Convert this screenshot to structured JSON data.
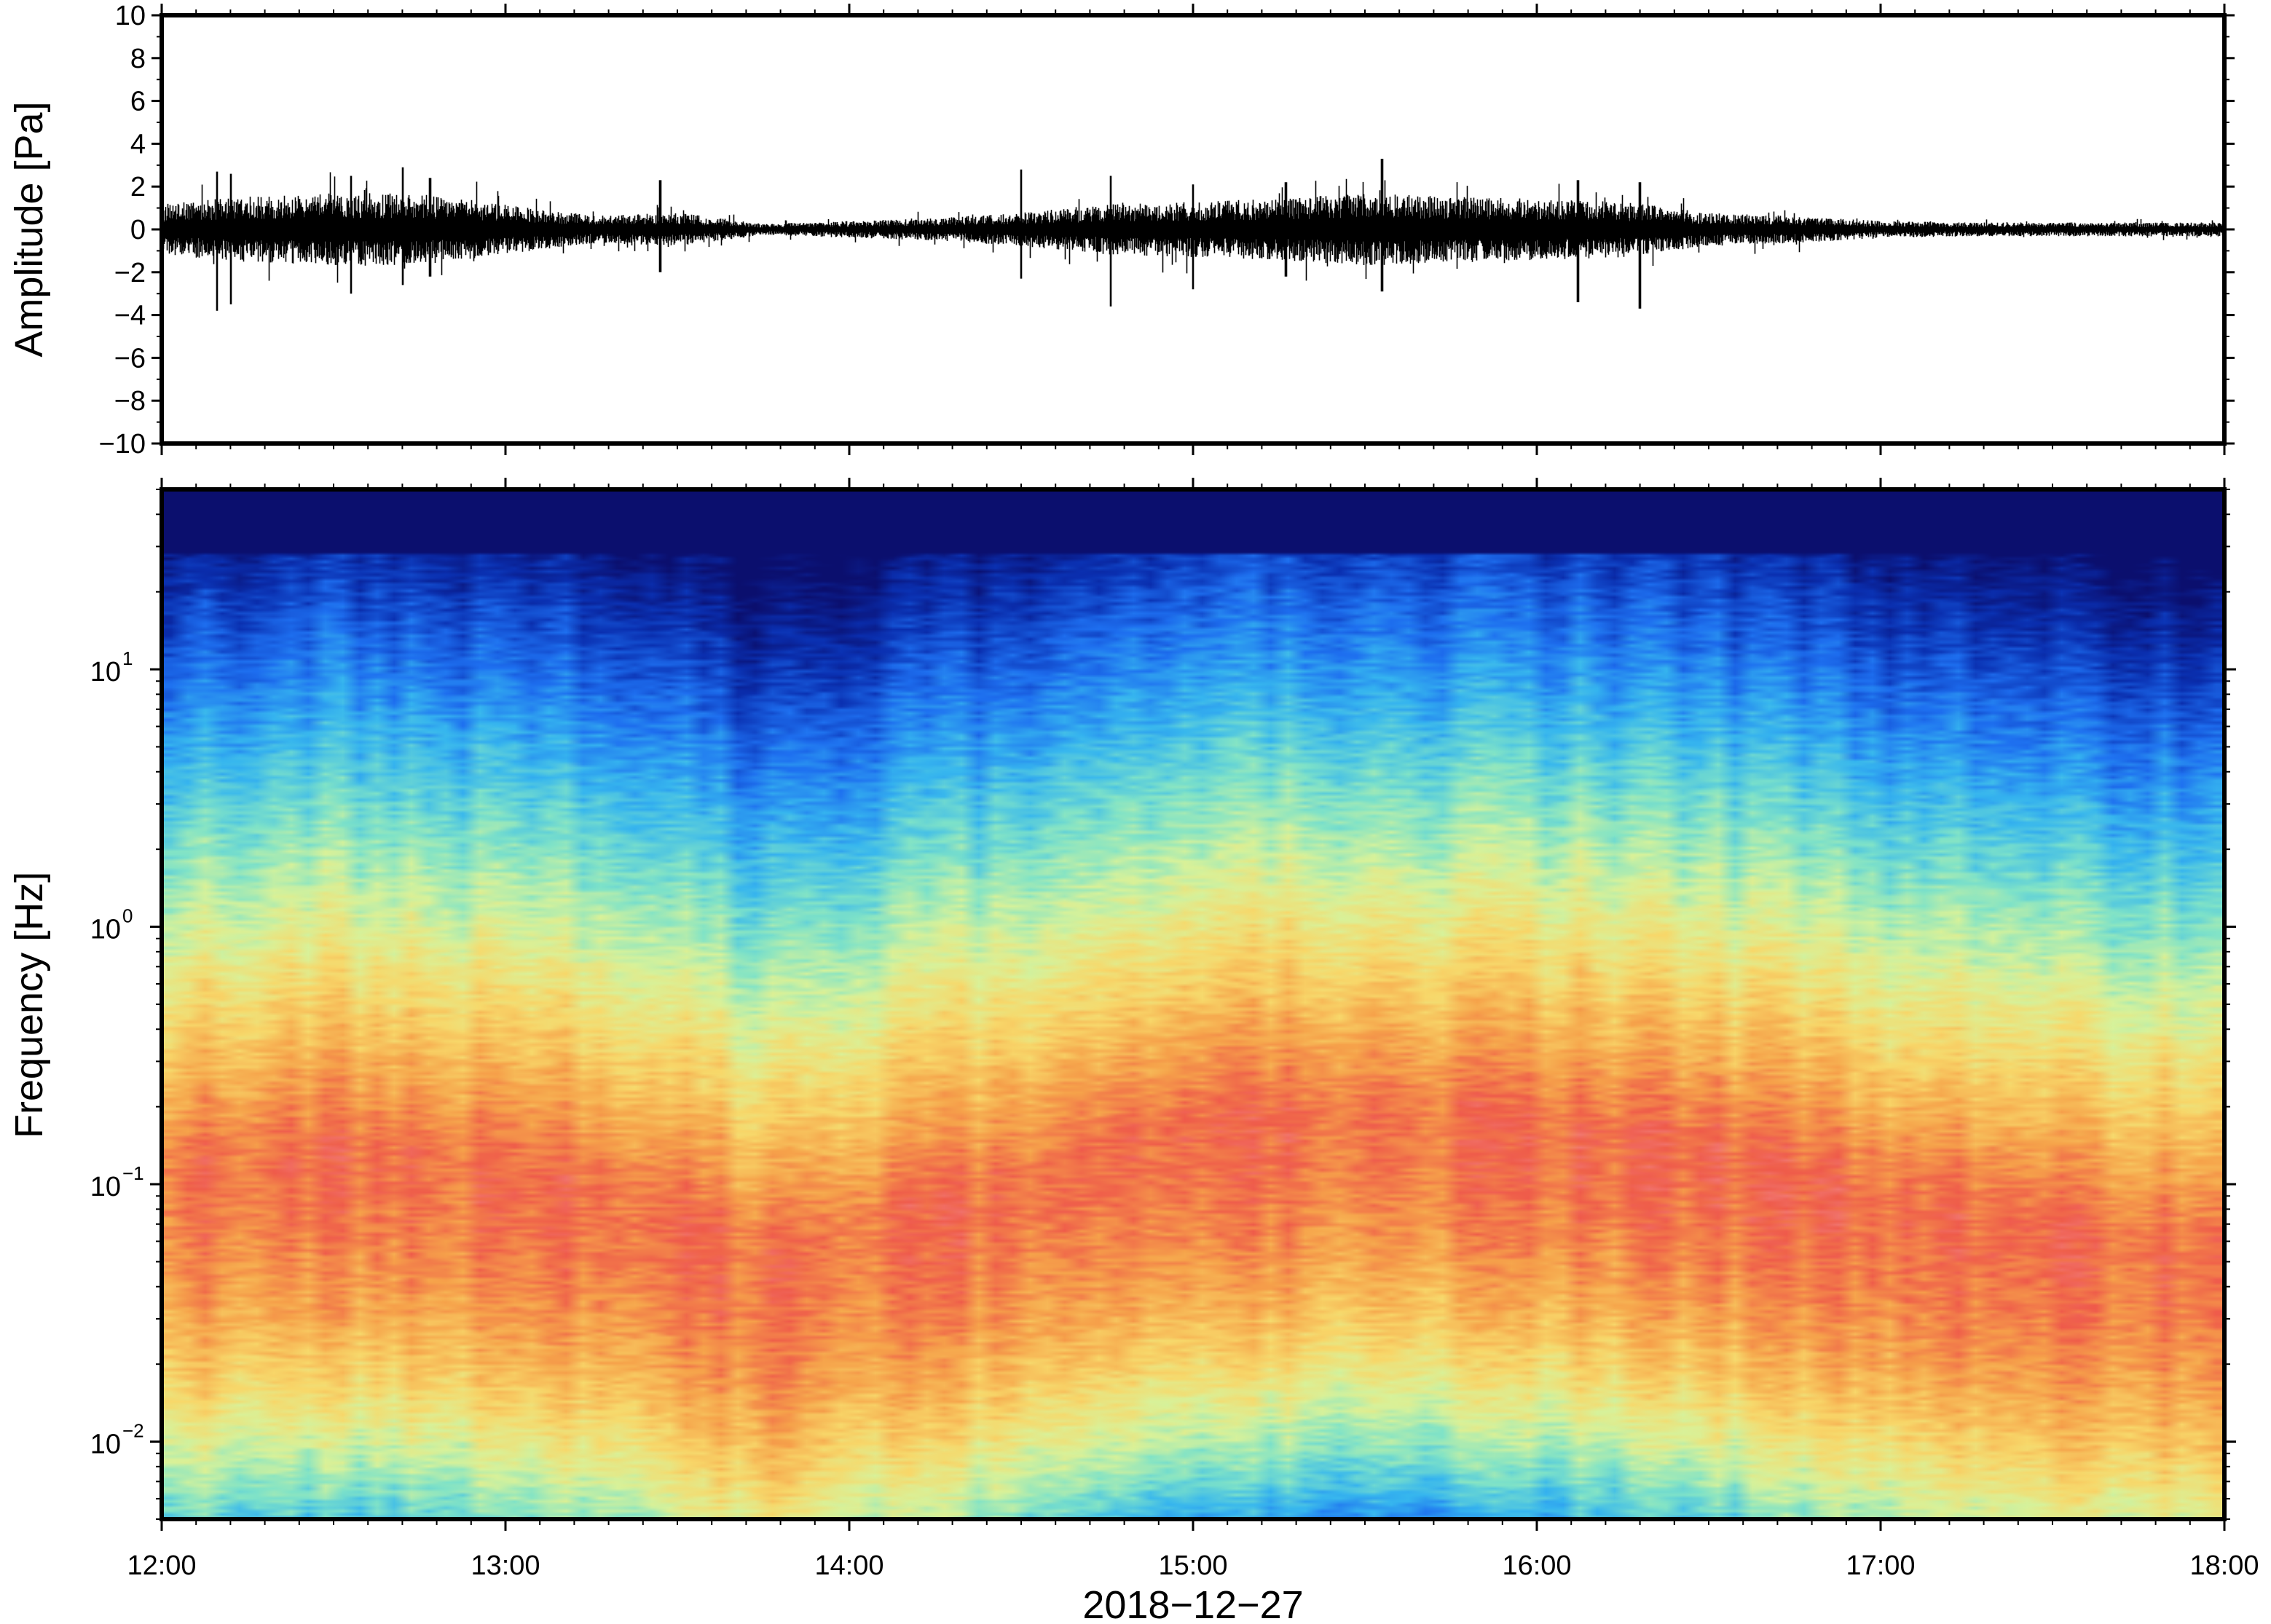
{
  "chart_data": [
    {
      "type": "line",
      "name": "waveform",
      "ylabel": "Amplitude [Pa]",
      "ylim": [
        -10,
        10
      ],
      "yticks": [
        10,
        8,
        6,
        4,
        2,
        0,
        -2,
        -4,
        -6,
        -8,
        -10
      ],
      "ytick_labels": [
        "10",
        "8",
        "6",
        "4",
        "2",
        "0",
        "−2",
        "−4",
        "−6",
        "−8",
        "−10"
      ],
      "xlim_hours": [
        12,
        18
      ],
      "grid": false,
      "envelope": {
        "time_hours": [
          12.0,
          12.25,
          12.5,
          12.75,
          13.0,
          13.25,
          13.5,
          13.75,
          14.0,
          14.25,
          14.5,
          14.75,
          15.0,
          15.25,
          15.5,
          15.75,
          16.0,
          16.25,
          16.5,
          16.75,
          17.0,
          17.25,
          17.5,
          17.75,
          18.0
        ],
        "amplitude_pa": [
          0.9,
          1.2,
          1.3,
          1.3,
          0.9,
          0.5,
          0.6,
          0.2,
          0.3,
          0.4,
          0.6,
          0.9,
          1.0,
          1.1,
          1.3,
          1.2,
          1.1,
          1.0,
          0.6,
          0.5,
          0.3,
          0.25,
          0.25,
          0.25,
          0.25
        ]
      },
      "peaks": [
        {
          "t": 12.16,
          "max": 2.7,
          "min": -3.8
        },
        {
          "t": 12.2,
          "max": 2.6,
          "min": -3.5
        },
        {
          "t": 12.55,
          "max": 2.5,
          "min": -3.0
        },
        {
          "t": 12.7,
          "max": 2.9,
          "min": -2.6
        },
        {
          "t": 12.78,
          "max": 2.4,
          "min": -2.2
        },
        {
          "t": 13.45,
          "max": 2.3,
          "min": -2.0
        },
        {
          "t": 14.5,
          "max": 2.8,
          "min": -2.3
        },
        {
          "t": 14.76,
          "max": 2.5,
          "min": -3.6
        },
        {
          "t": 15.0,
          "max": 2.1,
          "min": -2.8
        },
        {
          "t": 15.27,
          "max": 2.2,
          "min": -2.2
        },
        {
          "t": 15.55,
          "max": 3.3,
          "min": -2.9
        },
        {
          "t": 16.12,
          "max": 2.3,
          "min": -3.4
        },
        {
          "t": 16.3,
          "max": 2.2,
          "min": -3.7
        }
      ]
    },
    {
      "type": "heatmap",
      "name": "spectrogram",
      "ylabel": "Frequency [Hz]",
      "yscale": "log",
      "ylim": [
        0.005,
        50
      ],
      "yticks": [
        0.01,
        0.1,
        1,
        10
      ],
      "ytick_labels": [
        "10",
        "10",
        "10",
        "10"
      ],
      "ytick_exponents": [
        "−2",
        "−1",
        "0",
        "1"
      ],
      "colormap": [
        "#0b0f6e",
        "#0a2fb0",
        "#1e6ff0",
        "#36b6ef",
        "#7fe3c8",
        "#d8f29a",
        "#f8d86a",
        "#f6a24a",
        "#ef5a4a",
        "#f59aa0"
      ],
      "ridge_time_hours": [
        12.0,
        12.5,
        13.0,
        13.4,
        13.75,
        14.0,
        14.5,
        15.0,
        15.5,
        16.0,
        16.5,
        17.0,
        17.5,
        18.0
      ],
      "ridge_freq_hz": [
        0.12,
        0.15,
        0.12,
        0.09,
        0.05,
        0.07,
        0.11,
        0.18,
        0.2,
        0.18,
        0.14,
        0.09,
        0.07,
        0.06
      ]
    }
  ],
  "xaxis": {
    "tick_labels": [
      "12:00",
      "13:00",
      "14:00",
      "15:00",
      "16:00",
      "17:00",
      "18:00"
    ],
    "tick_hours": [
      12,
      13,
      14,
      15,
      16,
      17,
      18
    ],
    "xlabel": "2018−12−27"
  }
}
